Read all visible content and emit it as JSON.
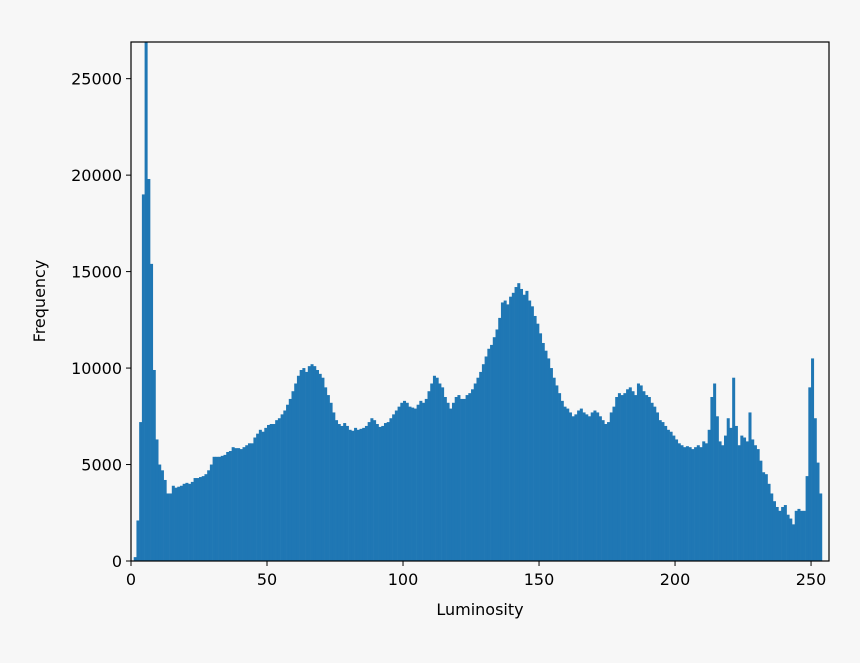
{
  "chart_data": {
    "type": "histogram",
    "xlabel": "Luminosity",
    "ylabel": "Frequency",
    "color": "#1f77b4",
    "xlim": [
      0,
      256.6
    ],
    "ylim": [
      0,
      26900
    ],
    "xticks": [
      0,
      50,
      100,
      150,
      200,
      250
    ],
    "yticks": [
      0,
      5000,
      10000,
      15000,
      20000,
      25000
    ],
    "grid": false,
    "bins": [
      0,
      1,
      2,
      3,
      4,
      5,
      6,
      7,
      8,
      9,
      10,
      11,
      12,
      13,
      14,
      15,
      16,
      17,
      18,
      19,
      20,
      21,
      22,
      23,
      24,
      25,
      26,
      27,
      28,
      29,
      30,
      31,
      32,
      33,
      34,
      35,
      36,
      37,
      38,
      39,
      40,
      41,
      42,
      43,
      44,
      45,
      46,
      47,
      48,
      49,
      50,
      51,
      52,
      53,
      54,
      55,
      56,
      57,
      58,
      59,
      60,
      61,
      62,
      63,
      64,
      65,
      66,
      67,
      68,
      69,
      70,
      71,
      72,
      73,
      74,
      75,
      76,
      77,
      78,
      79,
      80,
      81,
      82,
      83,
      84,
      85,
      86,
      87,
      88,
      89,
      90,
      91,
      92,
      93,
      94,
      95,
      96,
      97,
      98,
      99,
      100,
      101,
      102,
      103,
      104,
      105,
      106,
      107,
      108,
      109,
      110,
      111,
      112,
      113,
      114,
      115,
      116,
      117,
      118,
      119,
      120,
      121,
      122,
      123,
      124,
      125,
      126,
      127,
      128,
      129,
      130,
      131,
      132,
      133,
      134,
      135,
      136,
      137,
      138,
      139,
      140,
      141,
      142,
      143,
      144,
      145,
      146,
      147,
      148,
      149,
      150,
      151,
      152,
      153,
      154,
      155,
      156,
      157,
      158,
      159,
      160,
      161,
      162,
      163,
      164,
      165,
      166,
      167,
      168,
      169,
      170,
      171,
      172,
      173,
      174,
      175,
      176,
      177,
      178,
      179,
      180,
      181,
      182,
      183,
      184,
      185,
      186,
      187,
      188,
      189,
      190,
      191,
      192,
      193,
      194,
      195,
      196,
      197,
      198,
      199,
      200,
      201,
      202,
      203,
      204,
      205,
      206,
      207,
      208,
      209,
      210,
      211,
      212,
      213,
      214,
      215,
      216,
      217,
      218,
      219,
      220,
      221,
      222,
      223,
      224,
      225,
      226,
      227,
      228,
      229,
      230,
      231,
      232,
      233,
      234,
      235,
      236,
      237,
      238,
      239,
      240,
      241,
      242,
      243,
      244,
      245,
      246,
      247,
      248,
      249,
      250,
      251,
      252,
      253,
      254,
      255
    ],
    "counts": [
      0,
      200,
      2100,
      7200,
      19000,
      27500,
      19800,
      15400,
      9900,
      6300,
      5000,
      4700,
      4200,
      3500,
      3500,
      3900,
      3800,
      3850,
      3900,
      4000,
      4050,
      4000,
      4100,
      4300,
      4300,
      4350,
      4400,
      4500,
      4700,
      5000,
      5400,
      5400,
      5400,
      5450,
      5500,
      5650,
      5700,
      5900,
      5850,
      5850,
      5800,
      5900,
      6000,
      6100,
      6100,
      6400,
      6600,
      6800,
      6700,
      6900,
      7050,
      7100,
      7100,
      7300,
      7400,
      7600,
      7800,
      8100,
      8400,
      8800,
      9200,
      9600,
      9900,
      10000,
      9800,
      10100,
      10200,
      10100,
      9900,
      9700,
      9500,
      9000,
      8600,
      8200,
      7700,
      7300,
      7100,
      7000,
      7150,
      7000,
      6800,
      6750,
      6900,
      6800,
      6850,
      6900,
      7000,
      7200,
      7400,
      7300,
      7100,
      6950,
      7000,
      7150,
      7200,
      7400,
      7600,
      7800,
      8000,
      8200,
      8300,
      8200,
      8000,
      7950,
      7900,
      8100,
      8300,
      8200,
      8400,
      8800,
      9200,
      9600,
      9500,
      9200,
      9000,
      8500,
      8200,
      7900,
      8200,
      8500,
      8600,
      8400,
      8400,
      8600,
      8700,
      8900,
      9200,
      9500,
      9800,
      10200,
      10600,
      11000,
      11200,
      11600,
      12000,
      12600,
      13400,
      13500,
      13300,
      13700,
      13900,
      14200,
      14400,
      14100,
      13800,
      14000,
      13500,
      13200,
      12700,
      12300,
      11800,
      11300,
      10900,
      10500,
      10000,
      9500,
      9100,
      8700,
      8300,
      8000,
      7900,
      7700,
      7500,
      7600,
      7800,
      7900,
      7700,
      7600,
      7500,
      7700,
      7800,
      7700,
      7500,
      7300,
      7100,
      7200,
      7700,
      8000,
      8500,
      8700,
      8600,
      8700,
      8900,
      9000,
      8800,
      8600,
      9200,
      9100,
      8800,
      8600,
      8500,
      8200,
      8000,
      7700,
      7300,
      7200,
      7000,
      6800,
      6700,
      6500,
      6300,
      6100,
      6000,
      5900,
      5950,
      5900,
      5800,
      5900,
      6000,
      5900,
      6200,
      6100,
      6800,
      8500,
      9200,
      7500,
      6200,
      6000,
      6500,
      7400,
      6900,
      9500,
      7000,
      6000,
      6500,
      6400,
      6200,
      7700,
      6300,
      6000,
      5800,
      5200,
      4600,
      4500,
      4000,
      3500,
      3100,
      2800,
      2600,
      2800,
      2900,
      2400,
      2200,
      1900,
      2600,
      2700,
      2600,
      2600,
      4400,
      9000,
      10500,
      7400,
      5100,
      3500,
      0
    ]
  }
}
